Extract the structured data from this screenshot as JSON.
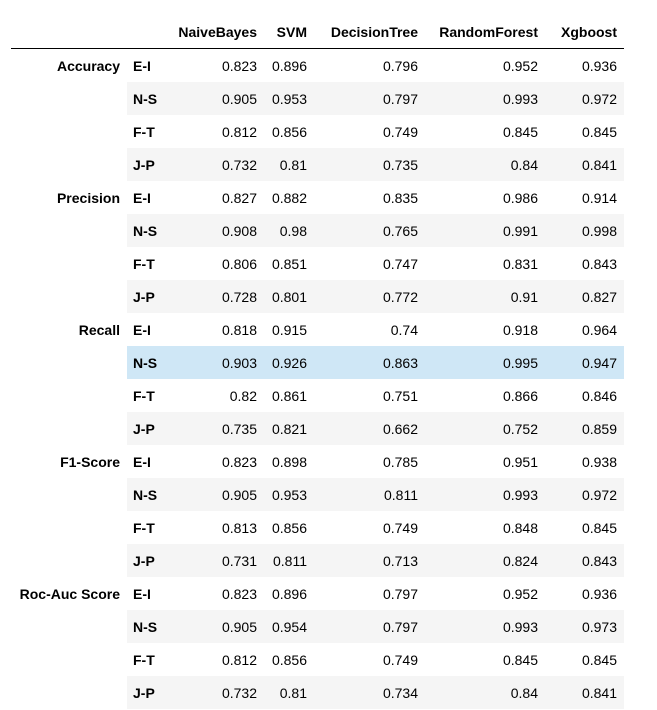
{
  "columns": [
    "",
    "",
    "NaiveBayes",
    "SVM",
    "DecisionTree",
    "RandomForest",
    "Xgboost"
  ],
  "groups": [
    {
      "metric": "Accuracy",
      "rows": [
        {
          "label": "E-I",
          "values": [
            "0.823",
            "0.896",
            "0.796",
            "0.952",
            "0.936"
          ]
        },
        {
          "label": "N-S",
          "values": [
            "0.905",
            "0.953",
            "0.797",
            "0.993",
            "0.972"
          ]
        },
        {
          "label": "F-T",
          "values": [
            "0.812",
            "0.856",
            "0.749",
            "0.845",
            "0.845"
          ]
        },
        {
          "label": "J-P",
          "values": [
            "0.732",
            "0.81",
            "0.735",
            "0.84",
            "0.841"
          ]
        }
      ]
    },
    {
      "metric": "Precision",
      "rows": [
        {
          "label": "E-I",
          "values": [
            "0.827",
            "0.882",
            "0.835",
            "0.986",
            "0.914"
          ]
        },
        {
          "label": "N-S",
          "values": [
            "0.908",
            "0.98",
            "0.765",
            "0.991",
            "0.998"
          ]
        },
        {
          "label": "F-T",
          "values": [
            "0.806",
            "0.851",
            "0.747",
            "0.831",
            "0.843"
          ]
        },
        {
          "label": "J-P",
          "values": [
            "0.728",
            "0.801",
            "0.772",
            "0.91",
            "0.827"
          ]
        }
      ]
    },
    {
      "metric": "Recall",
      "rows": [
        {
          "label": "E-I",
          "values": [
            "0.818",
            "0.915",
            "0.74",
            "0.918",
            "0.964"
          ]
        },
        {
          "label": "N-S",
          "values": [
            "0.903",
            "0.926",
            "0.863",
            "0.995",
            "0.947"
          ]
        },
        {
          "label": "F-T",
          "values": [
            "0.82",
            "0.861",
            "0.751",
            "0.866",
            "0.846"
          ]
        },
        {
          "label": "J-P",
          "values": [
            "0.735",
            "0.821",
            "0.662",
            "0.752",
            "0.859"
          ]
        }
      ]
    },
    {
      "metric": "F1-Score",
      "rows": [
        {
          "label": "E-I",
          "values": [
            "0.823",
            "0.898",
            "0.785",
            "0.951",
            "0.938"
          ]
        },
        {
          "label": "N-S",
          "values": [
            "0.905",
            "0.953",
            "0.811",
            "0.993",
            "0.972"
          ]
        },
        {
          "label": "F-T",
          "values": [
            "0.813",
            "0.856",
            "0.749",
            "0.848",
            "0.845"
          ]
        },
        {
          "label": "J-P",
          "values": [
            "0.731",
            "0.811",
            "0.713",
            "0.824",
            "0.843"
          ]
        }
      ]
    },
    {
      "metric": "Roc-Auc Score",
      "rows": [
        {
          "label": "E-I",
          "values": [
            "0.823",
            "0.896",
            "0.797",
            "0.952",
            "0.936"
          ]
        },
        {
          "label": "N-S",
          "values": [
            "0.905",
            "0.954",
            "0.797",
            "0.993",
            "0.973"
          ]
        },
        {
          "label": "F-T",
          "values": [
            "0.812",
            "0.856",
            "0.749",
            "0.845",
            "0.845"
          ]
        },
        {
          "label": "J-P",
          "values": [
            "0.732",
            "0.81",
            "0.734",
            "0.84",
            "0.841"
          ]
        }
      ]
    }
  ],
  "highlighted_row": {
    "metric": "Recall",
    "label": "N-S"
  },
  "colors": {
    "stripe": "#f5f5f5",
    "hover": "#cfe7f6",
    "header_rule": "#000000"
  }
}
